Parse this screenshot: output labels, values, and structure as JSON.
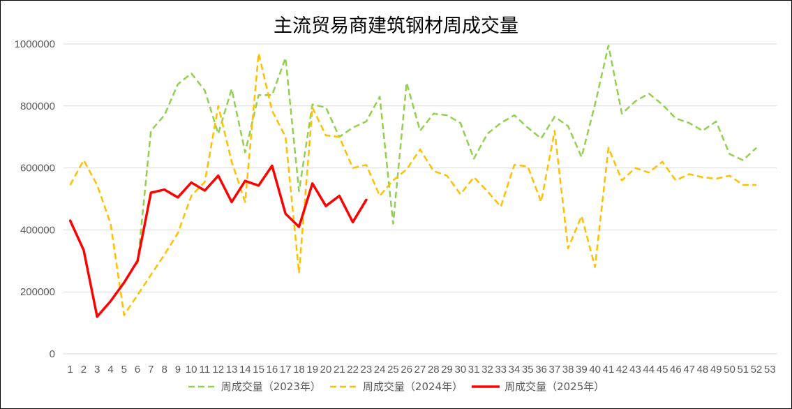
{
  "chart_data": {
    "type": "line",
    "title": "主流贸易商建筑钢材周成交量",
    "xlabel": "",
    "ylabel": "",
    "ylim": [
      0,
      1000000
    ],
    "y_ticks": [
      "0",
      "200000",
      "400000",
      "600000",
      "800000",
      "1000000"
    ],
    "x": [
      1,
      2,
      3,
      4,
      5,
      6,
      7,
      8,
      9,
      10,
      11,
      12,
      13,
      14,
      15,
      16,
      17,
      18,
      19,
      20,
      21,
      22,
      23,
      24,
      25,
      26,
      27,
      28,
      29,
      30,
      31,
      32,
      33,
      34,
      35,
      36,
      37,
      38,
      39,
      40,
      41,
      42,
      43,
      44,
      45,
      46,
      47,
      48,
      49,
      50,
      51,
      52,
      53
    ],
    "grid": "horizontal",
    "legend_position": "bottom",
    "series": [
      {
        "name": "周成交量（2023年）",
        "color": "#92D050",
        "dash": true,
        "values": [
          null,
          null,
          null,
          null,
          null,
          290000,
          720000,
          770000,
          870000,
          905000,
          850000,
          710000,
          855000,
          650000,
          835000,
          835000,
          955000,
          525000,
          805000,
          795000,
          700000,
          730000,
          750000,
          830000,
          420000,
          875000,
          720000,
          775000,
          770000,
          745000,
          630000,
          710000,
          745000,
          770000,
          730000,
          695000,
          765000,
          735000,
          635000,
          805000,
          995000,
          775000,
          815000,
          840000,
          805000,
          760000,
          745000,
          720000,
          750000,
          645000,
          625000,
          665000,
          null
        ]
      },
      {
        "name": "周成交量（2024年）",
        "color": "#FFC000",
        "dash": true,
        "values": [
          545000,
          625000,
          545000,
          420000,
          125000,
          190000,
          255000,
          320000,
          390000,
          510000,
          555000,
          800000,
          620000,
          490000,
          970000,
          785000,
          700000,
          260000,
          795000,
          705000,
          700000,
          600000,
          610000,
          510000,
          560000,
          595000,
          660000,
          590000,
          575000,
          515000,
          570000,
          525000,
          475000,
          610000,
          605000,
          490000,
          720000,
          340000,
          445000,
          280000,
          665000,
          560000,
          600000,
          585000,
          620000,
          560000,
          580000,
          570000,
          565000,
          575000,
          545000,
          545000,
          null
        ]
      },
      {
        "name": "周成交量（2025年）",
        "color": "#FF0000",
        "dash": false,
        "values": [
          430000,
          335000,
          120000,
          170000,
          230000,
          300000,
          520000,
          530000,
          505000,
          553000,
          527000,
          575000,
          490000,
          558000,
          543000,
          607000,
          452000,
          410000,
          550000,
          477000,
          510000,
          425000,
          497000,
          null,
          null,
          null,
          null,
          null,
          null,
          null,
          null,
          null,
          null,
          null,
          null,
          null,
          null,
          null,
          null,
          null,
          null,
          null,
          null,
          null,
          null,
          null,
          null,
          null,
          null,
          null,
          null,
          null,
          null
        ]
      }
    ]
  }
}
